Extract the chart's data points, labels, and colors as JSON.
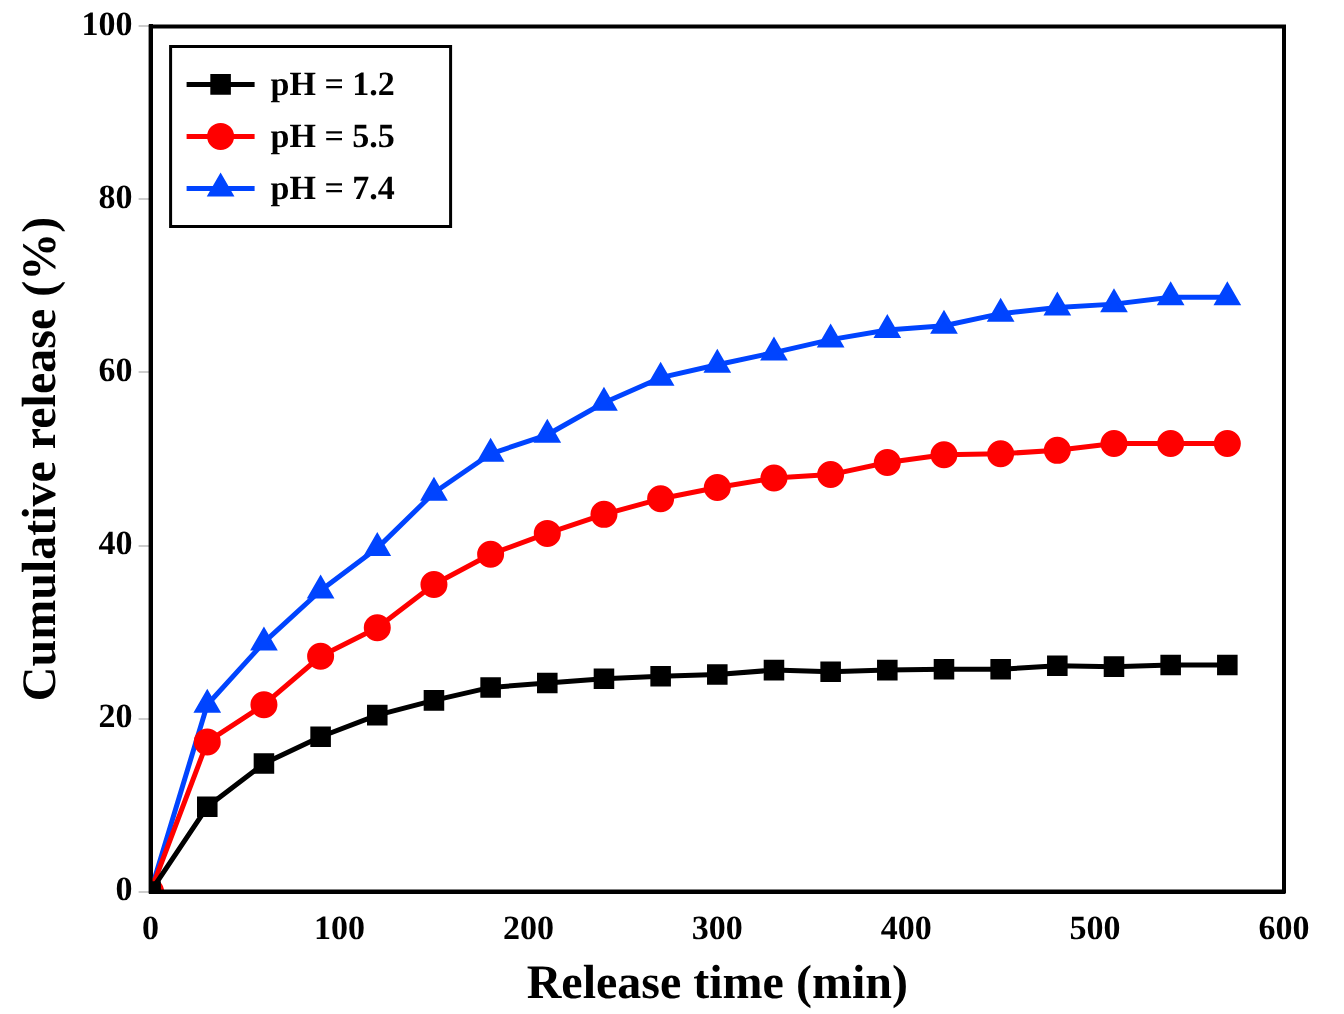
{
  "chart_data": {
    "type": "line",
    "xlabel": "Release time (min)",
    "ylabel": "Cumulative release (%)",
    "x": [
      0,
      30,
      60,
      90,
      120,
      150,
      180,
      210,
      240,
      270,
      300,
      330,
      360,
      390,
      420,
      450,
      480,
      510,
      540,
      570
    ],
    "series": [
      {
        "name": "pH = 1.2",
        "color": "#000000",
        "marker": "square",
        "values": [
          0,
          9.8,
          14.8,
          17.9,
          20.4,
          22.1,
          23.6,
          24.1,
          24.6,
          24.9,
          25.1,
          25.6,
          25.4,
          25.6,
          25.7,
          25.7,
          26.1,
          26.0,
          26.2,
          26.2
        ]
      },
      {
        "name": "pH = 5.5",
        "color": "#ff0000",
        "marker": "circle",
        "values": [
          0,
          17.3,
          21.6,
          27.2,
          30.5,
          35.5,
          39.0,
          41.4,
          43.6,
          45.4,
          46.7,
          47.8,
          48.2,
          49.6,
          50.5,
          50.6,
          51.0,
          51.8,
          51.8,
          51.8
        ]
      },
      {
        "name": "pH = 7.4",
        "color": "#0044ff",
        "marker": "triangle",
        "values": [
          0,
          21.6,
          28.8,
          34.8,
          39.7,
          46.1,
          50.6,
          52.8,
          56.5,
          59.4,
          60.9,
          62.3,
          63.8,
          64.9,
          65.4,
          66.8,
          67.5,
          67.9,
          68.7,
          68.7
        ]
      }
    ],
    "xlim": [
      0,
      600
    ],
    "xticks": [
      0,
      100,
      200,
      300,
      400,
      500,
      600
    ],
    "ylim": [
      0,
      100
    ],
    "yticks": [
      0,
      20,
      40,
      60,
      80,
      100
    ],
    "grid": false,
    "legend": "top left",
    "line_style": "solid"
  }
}
